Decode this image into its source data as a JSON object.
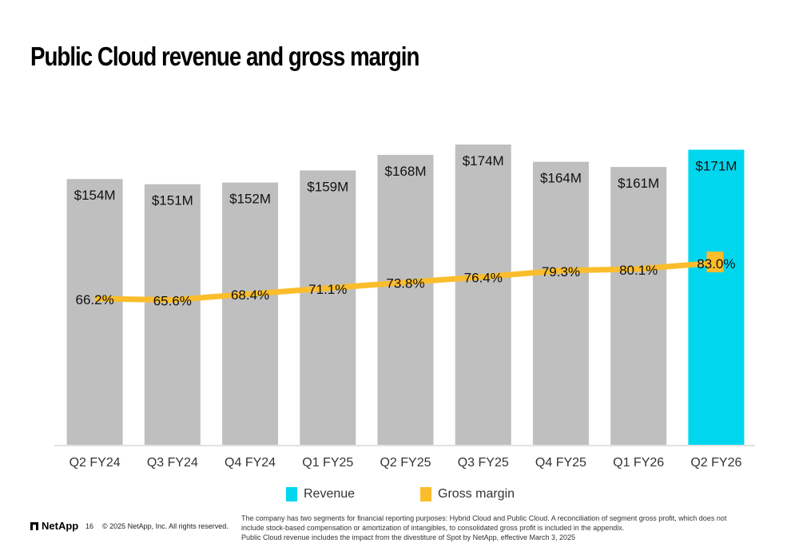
{
  "title": "Public Cloud revenue and gross margin",
  "colors": {
    "bar_default": "#bfbfbf",
    "bar_highlight": "#00d7ef",
    "line": "#fbbd2b",
    "axis": "#d9d9d9"
  },
  "chart_data": {
    "type": "bar",
    "title": "Public Cloud revenue and gross margin",
    "xlabel": "",
    "ylabel": "",
    "grid": false,
    "legend_position": "bottom-center",
    "categories": [
      "Q2 FY24",
      "Q3 FY24",
      "Q4 FY24",
      "Q1 FY25",
      "Q2 FY25",
      "Q3 FY25",
      "Q4 FY25",
      "Q1 FY26",
      "Q2 FY26"
    ],
    "series": [
      {
        "name": "Revenue",
        "type": "bar",
        "unit": "$M",
        "values": [
          154,
          151,
          152,
          159,
          168,
          174,
          164,
          161,
          171
        ],
        "labels": [
          "$154M",
          "$151M",
          "$152M",
          "$159M",
          "$168M",
          "$174M",
          "$164M",
          "$161M",
          "$171M"
        ],
        "highlight_index": 8
      },
      {
        "name": "Gross margin",
        "type": "line",
        "unit": "%",
        "values": [
          66.2,
          65.6,
          68.4,
          71.1,
          73.8,
          76.4,
          79.3,
          80.1,
          83.0
        ],
        "labels": [
          "66.2%",
          "65.6%",
          "68.4%",
          "71.1%",
          "73.8%",
          "76.4%",
          "79.3%",
          "80.1%",
          "83.0%"
        ]
      }
    ],
    "legend": [
      "Revenue",
      "Gross margin"
    ]
  },
  "footer": {
    "logo": "NetApp",
    "page_number": "16",
    "copyright": "© 2025 NetApp, Inc. All rights reserved.",
    "footnote_lines": [
      "The company has two segments for financial reporting purposes: Hybrid Cloud and Public Cloud. A reconciliation of segment gross profit, which does not",
      "include stock-based compensation or amortization of intangibles, to consolidated gross profit is included in the appendix.",
      "Public Cloud revenue includes the impact from the divestiture of Spot by NetApp, effective March 3, 2025"
    ]
  }
}
